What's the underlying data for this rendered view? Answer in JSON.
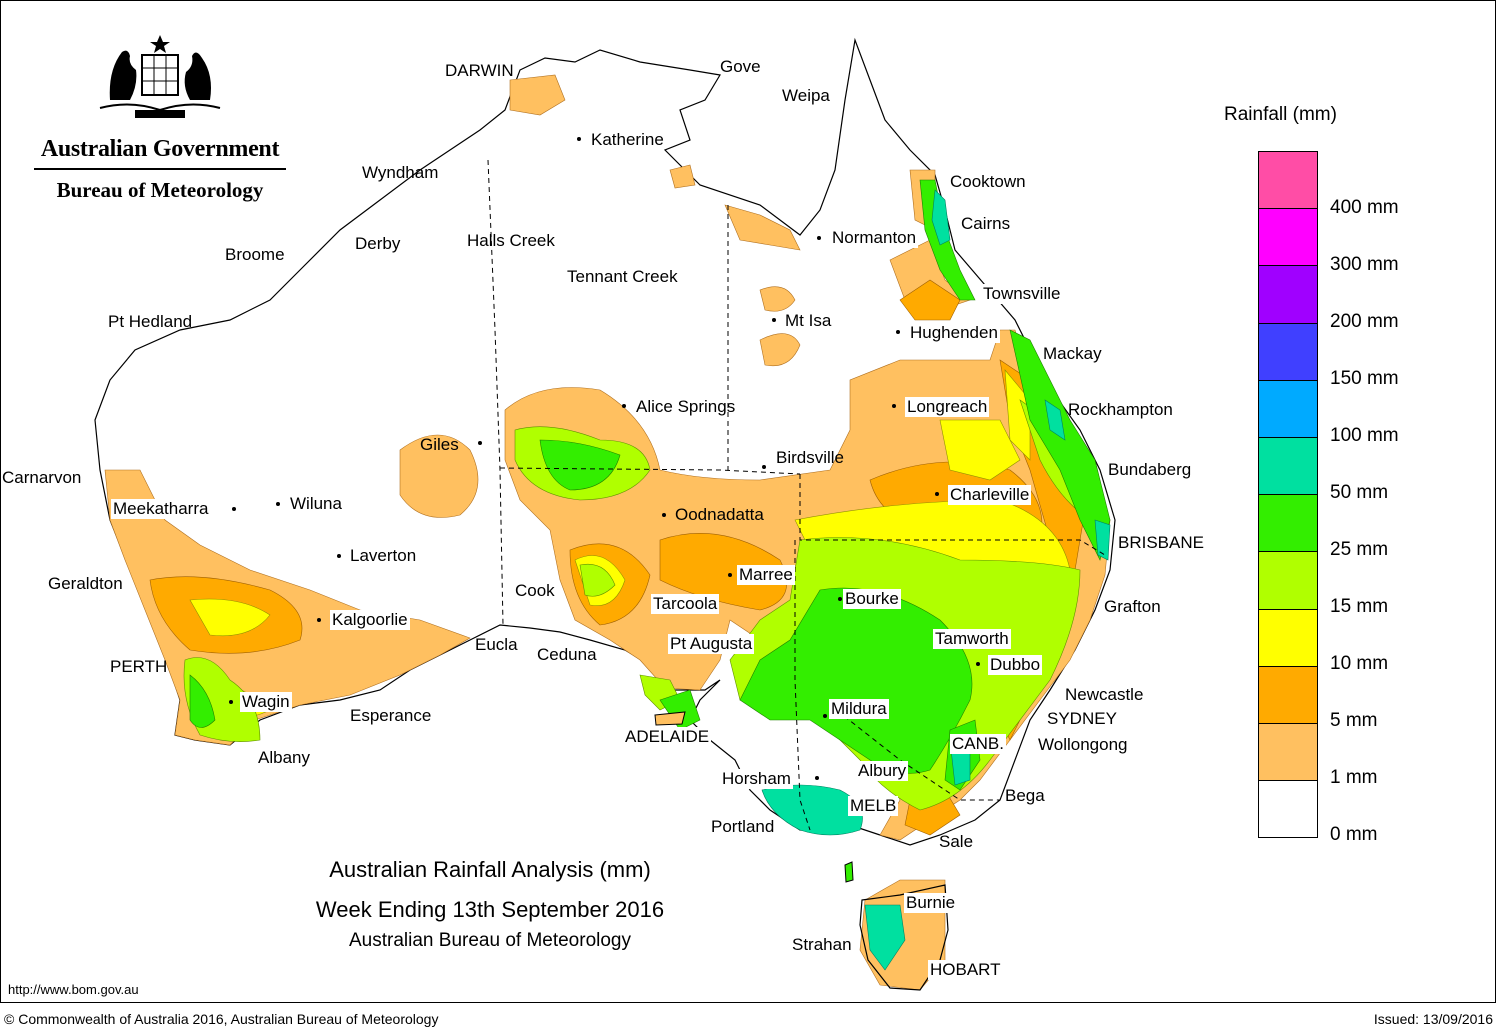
{
  "header": {
    "agency": "Australian Government",
    "bureau": "Bureau of Meteorology"
  },
  "title": {
    "line1": "Australian Rainfall Analysis (mm)",
    "line2": "Week Ending 13th September 2016",
    "line3": "Australian Bureau of Meteorology"
  },
  "footer": {
    "url": "http://www.bom.gov.au",
    "copyright": "© Commonwealth of Australia 2016, Australian Bureau of Meteorology",
    "issued": "Issued: 13/09/2016"
  },
  "legend": {
    "title": "Rainfall (mm)",
    "labels": [
      "400 mm",
      "300 mm",
      "200 mm",
      "150 mm",
      "100 mm",
      "50 mm",
      "25 mm",
      "15 mm",
      "10 mm",
      "5 mm",
      "1 mm",
      "0 mm"
    ],
    "colors": [
      "#ff4da6",
      "#ff00ff",
      "#a000ff",
      "#4040ff",
      "#00aaff",
      "#00e0a0",
      "#33ee00",
      "#b0ff00",
      "#ffff00",
      "#ffaa00",
      "#ffc060",
      "#ffffff"
    ]
  },
  "places": {
    "darwin": "DARWIN",
    "gove": "Gove",
    "weipa": "Weipa",
    "katherine": "Katherine",
    "wyndham": "Wyndham",
    "cooktown": "Cooktown",
    "cairns": "Cairns",
    "broome": "Broome",
    "derby": "Derby",
    "hallscreek": "Halls Creek",
    "normanton": "Normanton",
    "tennantcreek": "Tennant Creek",
    "townsville": "Townsville",
    "pthedland": "Pt Hedland",
    "mtisa": "Mt Isa",
    "hughenden": "Hughenden",
    "mackay": "Mackay",
    "alicesprings": "Alice Springs",
    "longreach": "Longreach",
    "rockhampton": "Rockhampton",
    "giles": "Giles",
    "birdsville": "Birdsville",
    "bundaberg": "Bundaberg",
    "carnarvon": "Carnarvon",
    "charleville": "Charleville",
    "meekatharra": "Meekatharra",
    "wiluna": "Wiluna",
    "oodnadatta": "Oodnadatta",
    "brisbane": "BRISBANE",
    "laverton": "Laverton",
    "marree": "Marree",
    "geraldton": "Geraldton",
    "cook": "Cook",
    "bourke": "Bourke",
    "tarcoola": "Tarcoola",
    "grafton": "Grafton",
    "kalgoorlie": "Kalgoorlie",
    "tamworth": "Tamworth",
    "eucla": "Eucla",
    "ptaugusta": "Pt Augusta",
    "perth": "PERTH",
    "ceduna": "Ceduna",
    "dubbo": "Dubbo",
    "newcastle": "Newcastle",
    "wagin": "Wagin",
    "mildura": "Mildura",
    "sydney": "SYDNEY",
    "esperance": "Esperance",
    "adelaide": "ADELAIDE",
    "canberra": "CANB.",
    "wollongong": "Wollongong",
    "albany": "Albany",
    "albury": "Albury",
    "horsham": "Horsham",
    "bega": "Bega",
    "melbourne": "MELB",
    "portland": "Portland",
    "sale": "Sale",
    "burnie": "Burnie",
    "strahan": "Strahan",
    "hobart": "HOBART"
  }
}
